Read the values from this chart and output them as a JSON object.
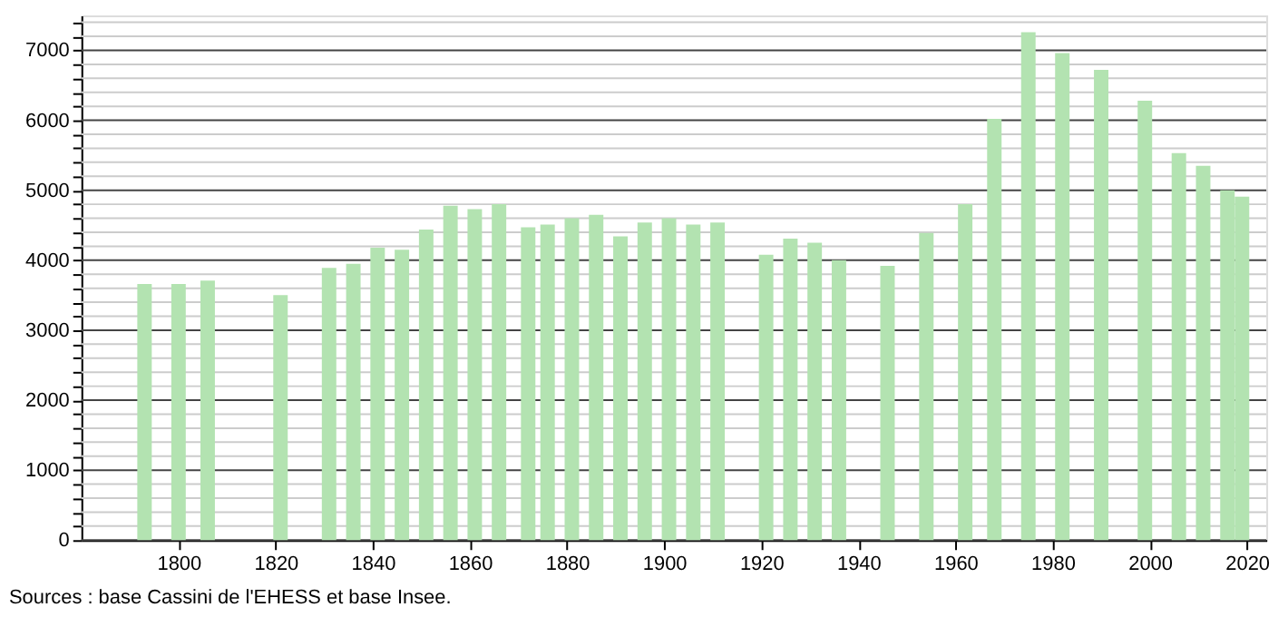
{
  "chart_data": {
    "type": "bar",
    "x": [
      1793,
      1800,
      1806,
      1821,
      1831,
      1836,
      1841,
      1846,
      1851,
      1856,
      1861,
      1866,
      1872,
      1876,
      1881,
      1886,
      1891,
      1896,
      1901,
      1906,
      1911,
      1921,
      1926,
      1931,
      1936,
      1946,
      1954,
      1962,
      1968,
      1975,
      1982,
      1990,
      1999,
      2006,
      2011,
      2016,
      2019
    ],
    "values": [
      3660,
      3660,
      3710,
      3500,
      3890,
      3950,
      4180,
      4150,
      4440,
      4780,
      4730,
      4800,
      4470,
      4510,
      4600,
      4650,
      4340,
      4540,
      4600,
      4510,
      4540,
      4080,
      4310,
      4250,
      4000,
      3920,
      4390,
      4800,
      6020,
      7260,
      6960,
      6720,
      6280,
      5530,
      5350,
      5000,
      4910
    ],
    "color": "#b3e3b1",
    "xlim": [
      1780,
      2024
    ],
    "xticks": [
      1800,
      1820,
      1840,
      1860,
      1880,
      1900,
      1920,
      1940,
      1960,
      1980,
      2000,
      2020
    ],
    "ylim": [
      0,
      7500
    ],
    "yticks": [
      0,
      {
        "value": 200,
        "label": null
      },
      {
        "value": 400,
        "label": null
      },
      {
        "value": 600,
        "label": null
      },
      {
        "value": 800,
        "label": null
      },
      1000,
      {
        "value": 1200,
        "label": null
      },
      {
        "value": 1400,
        "label": null
      },
      {
        "value": 1600,
        "label": null
      },
      {
        "value": 1800,
        "label": null
      },
      2000,
      {
        "value": 2200,
        "label": null
      },
      {
        "value": 2400,
        "label": null
      },
      {
        "value": 2600,
        "label": null
      },
      {
        "value": 2800,
        "label": null
      },
      3000,
      {
        "value": 3200,
        "label": null
      },
      {
        "value": 3400,
        "label": null
      },
      {
        "value": 3600,
        "label": null
      },
      {
        "value": 3800,
        "label": null
      },
      4000,
      {
        "value": 4200,
        "label": null
      },
      {
        "value": 4400,
        "label": null
      },
      {
        "value": 4600,
        "label": null
      },
      {
        "value": 4800,
        "label": null
      },
      5000,
      {
        "value": 5200,
        "label": null
      },
      {
        "value": 5400,
        "label": null
      },
      {
        "value": 5600,
        "label": null
      },
      {
        "value": 5800,
        "label": null
      },
      6000,
      {
        "value": 6200,
        "label": null
      },
      {
        "value": 6400,
        "label": null
      },
      {
        "value": 6600,
        "label": null
      },
      {
        "value": 6800,
        "label": null
      },
      7000,
      {
        "value": 7200,
        "label": null
      },
      {
        "value": 7400,
        "label": null
      }
    ],
    "grid": true,
    "annotations": [
      "Sources : base Cassini de l'EHESS et base Insee."
    ]
  }
}
